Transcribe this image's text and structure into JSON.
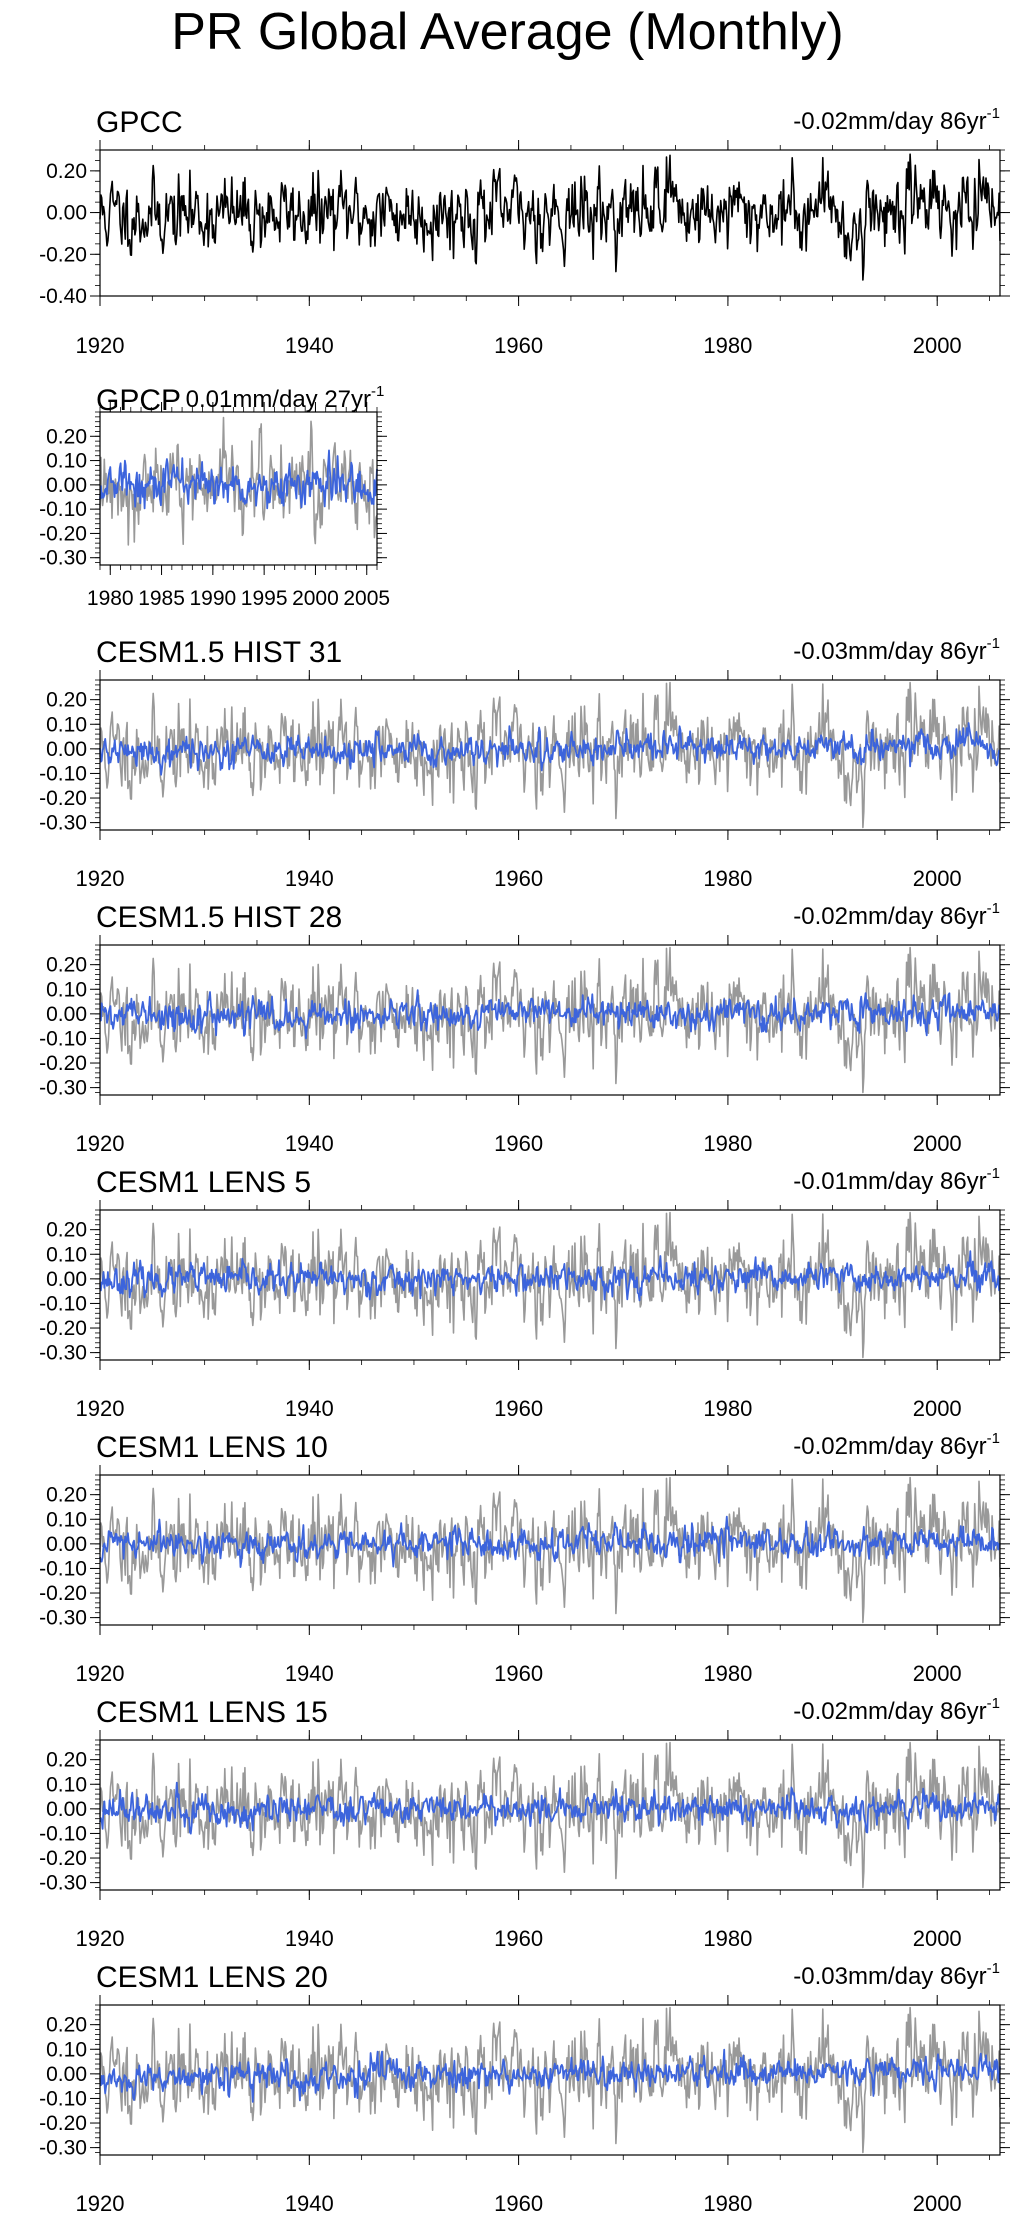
{
  "title": "PR Global Average (Monthly)",
  "colors": {
    "observed": "#000000",
    "observed_ref": "#999999",
    "model": "#3c64dc",
    "axis": "#000000",
    "background": "#ffffff"
  },
  "chart_data": [
    {
      "type": "line",
      "title": "GPCC",
      "trend_label": "-0.02mm/day 86yr",
      "trend_sup": "-1",
      "x_range": [
        1920,
        2006
      ],
      "xticks": [
        1920,
        1940,
        1960,
        1980,
        2000
      ],
      "ylim": [
        -0.4,
        0.3
      ],
      "yticks": [
        0.2,
        0.0,
        -0.2,
        -0.4
      ],
      "ytick_labels": [
        "0.20",
        "0.00",
        "-0.20",
        "-0.40"
      ],
      "series": [
        {
          "name": "GPCC",
          "color": "#000000",
          "x_start": 1920,
          "x_end": 2006,
          "n": 1032,
          "amplitude": 0.09,
          "trend": -0.02,
          "seed": 11,
          "ref": true
        }
      ]
    },
    {
      "type": "line",
      "title": "GPCP",
      "trend_label": "0.01mm/day 27yr",
      "trend_sup": "-1",
      "x_range": [
        1979,
        2006
      ],
      "xticks": [
        1980,
        1985,
        1990,
        1995,
        2000,
        2005
      ],
      "ylim": [
        -0.33,
        0.3
      ],
      "yticks": [
        0.2,
        0.1,
        0.0,
        -0.1,
        -0.2,
        -0.3
      ],
      "ytick_labels": [
        "0.20",
        "0.10",
        "0.00",
        "-0.10",
        "-0.20",
        "-0.30"
      ],
      "series": [
        {
          "name": "GPCC",
          "color": "#999999",
          "x_start": 1979,
          "x_end": 2006,
          "n": 324,
          "amplitude": 0.09,
          "trend": -0.01,
          "seed": 12
        },
        {
          "name": "GPCP",
          "color": "#3c64dc",
          "x_start": 1979,
          "x_end": 2006,
          "n": 324,
          "amplitude": 0.045,
          "trend": 0.01,
          "seed": 13
        }
      ]
    },
    {
      "type": "line",
      "title": "CESM1.5 HIST 31",
      "trend_label": "-0.03mm/day 86yr",
      "trend_sup": "-1",
      "x_range": [
        1920,
        2006
      ],
      "xticks": [
        1920,
        1940,
        1960,
        1980,
        2000
      ],
      "ylim": [
        -0.33,
        0.28
      ],
      "yticks": [
        0.2,
        0.1,
        0.0,
        -0.1,
        -0.2,
        -0.3
      ],
      "ytick_labels": [
        "0.20",
        "0.10",
        "0.00",
        "-0.10",
        "-0.20",
        "-0.30"
      ],
      "series": [
        {
          "name": "GPCC",
          "color": "#999999",
          "x_start": 1920,
          "x_end": 2006,
          "n": 1032,
          "amplitude": 0.09,
          "trend": -0.02,
          "seed": 11,
          "ref": true
        },
        {
          "name": "CESM1.5 HIST 31",
          "color": "#3c64dc",
          "x_start": 1920,
          "x_end": 2006,
          "n": 1032,
          "amplitude": 0.03,
          "trend": -0.03,
          "seed": 21
        }
      ]
    },
    {
      "type": "line",
      "title": "CESM1.5 HIST 28",
      "trend_label": "-0.02mm/day 86yr",
      "trend_sup": "-1",
      "x_range": [
        1920,
        2006
      ],
      "xticks": [
        1920,
        1940,
        1960,
        1980,
        2000
      ],
      "ylim": [
        -0.33,
        0.28
      ],
      "yticks": [
        0.2,
        0.1,
        0.0,
        -0.1,
        -0.2,
        -0.3
      ],
      "ytick_labels": [
        "0.20",
        "0.10",
        "0.00",
        "-0.10",
        "-0.20",
        "-0.30"
      ],
      "series": [
        {
          "name": "GPCC",
          "color": "#999999",
          "x_start": 1920,
          "x_end": 2006,
          "n": 1032,
          "amplitude": 0.09,
          "trend": -0.02,
          "seed": 11,
          "ref": true
        },
        {
          "name": "CESM1.5 HIST 28",
          "color": "#3c64dc",
          "x_start": 1920,
          "x_end": 2006,
          "n": 1032,
          "amplitude": 0.03,
          "trend": -0.02,
          "seed": 22
        }
      ]
    },
    {
      "type": "line",
      "title": "CESM1 LENS 5",
      "trend_label": "-0.01mm/day 86yr",
      "trend_sup": "-1",
      "x_range": [
        1920,
        2006
      ],
      "xticks": [
        1920,
        1940,
        1960,
        1980,
        2000
      ],
      "ylim": [
        -0.33,
        0.28
      ],
      "yticks": [
        0.2,
        0.1,
        0.0,
        -0.1,
        -0.2,
        -0.3
      ],
      "ytick_labels": [
        "0.20",
        "0.10",
        "0.00",
        "-0.10",
        "-0.20",
        "-0.30"
      ],
      "series": [
        {
          "name": "GPCC",
          "color": "#999999",
          "x_start": 1920,
          "x_end": 2006,
          "n": 1032,
          "amplitude": 0.09,
          "trend": -0.02,
          "seed": 11,
          "ref": true
        },
        {
          "name": "CESM1 LENS 5",
          "color": "#3c64dc",
          "x_start": 1920,
          "x_end": 2006,
          "n": 1032,
          "amplitude": 0.03,
          "trend": -0.01,
          "seed": 23
        }
      ]
    },
    {
      "type": "line",
      "title": "CESM1 LENS 10",
      "trend_label": "-0.02mm/day 86yr",
      "trend_sup": "-1",
      "x_range": [
        1920,
        2006
      ],
      "xticks": [
        1920,
        1940,
        1960,
        1980,
        2000
      ],
      "ylim": [
        -0.33,
        0.28
      ],
      "yticks": [
        0.2,
        0.1,
        0.0,
        -0.1,
        -0.2,
        -0.3
      ],
      "ytick_labels": [
        "0.20",
        "0.10",
        "0.00",
        "-0.10",
        "-0.20",
        "-0.30"
      ],
      "series": [
        {
          "name": "GPCC",
          "color": "#999999",
          "x_start": 1920,
          "x_end": 2006,
          "n": 1032,
          "amplitude": 0.09,
          "trend": -0.02,
          "seed": 11,
          "ref": true
        },
        {
          "name": "CESM1 LENS 10",
          "color": "#3c64dc",
          "x_start": 1920,
          "x_end": 2006,
          "n": 1032,
          "amplitude": 0.03,
          "trend": -0.02,
          "seed": 24
        }
      ]
    },
    {
      "type": "line",
      "title": "CESM1 LENS 15",
      "trend_label": "-0.02mm/day 86yr",
      "trend_sup": "-1",
      "x_range": [
        1920,
        2006
      ],
      "xticks": [
        1920,
        1940,
        1960,
        1980,
        2000
      ],
      "ylim": [
        -0.33,
        0.28
      ],
      "yticks": [
        0.2,
        0.1,
        0.0,
        -0.1,
        -0.2,
        -0.3
      ],
      "ytick_labels": [
        "0.20",
        "0.10",
        "0.00",
        "-0.10",
        "-0.20",
        "-0.30"
      ],
      "series": [
        {
          "name": "GPCC",
          "color": "#999999",
          "x_start": 1920,
          "x_end": 2006,
          "n": 1032,
          "amplitude": 0.09,
          "trend": -0.02,
          "seed": 11,
          "ref": true
        },
        {
          "name": "CESM1 LENS 15",
          "color": "#3c64dc",
          "x_start": 1920,
          "x_end": 2006,
          "n": 1032,
          "amplitude": 0.03,
          "trend": -0.02,
          "seed": 25
        }
      ]
    },
    {
      "type": "line",
      "title": "CESM1 LENS 20",
      "trend_label": "-0.03mm/day 86yr",
      "trend_sup": "-1",
      "x_range": [
        1920,
        2006
      ],
      "xticks": [
        1920,
        1940,
        1960,
        1980,
        2000
      ],
      "ylim": [
        -0.33,
        0.28
      ],
      "yticks": [
        0.2,
        0.1,
        0.0,
        -0.1,
        -0.2,
        -0.3
      ],
      "ytick_labels": [
        "0.20",
        "0.10",
        "0.00",
        "-0.10",
        "-0.20",
        "-0.30"
      ],
      "series": [
        {
          "name": "GPCC",
          "color": "#999999",
          "x_start": 1920,
          "x_end": 2006,
          "n": 1032,
          "amplitude": 0.09,
          "trend": -0.02,
          "seed": 11,
          "ref": true
        },
        {
          "name": "CESM1 LENS 20",
          "color": "#3c64dc",
          "x_start": 1920,
          "x_end": 2006,
          "n": 1032,
          "amplitude": 0.03,
          "trend": -0.03,
          "seed": 26
        }
      ]
    }
  ]
}
